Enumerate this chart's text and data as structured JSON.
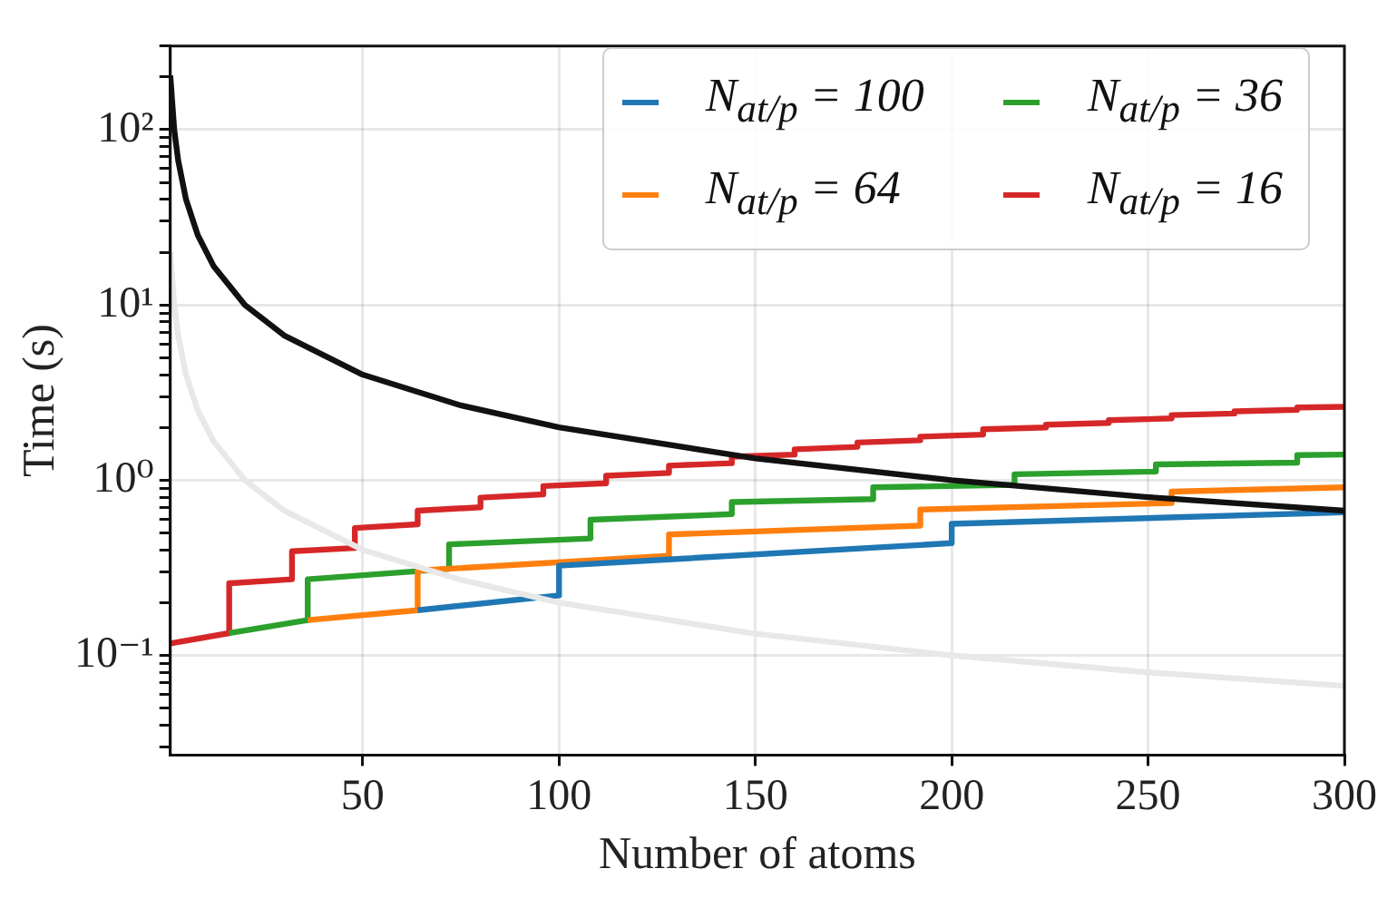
{
  "chart_data": {
    "type": "line",
    "xlabel": "Number of atoms",
    "ylabel": "Time (s)",
    "log": "y",
    "grid": true,
    "legend": "top right",
    "xlim": [
      1,
      300
    ],
    "xticks": [
      50,
      100,
      150,
      200,
      250,
      300
    ],
    "ylim": [
      0.027,
      300
    ],
    "yticks": [
      {
        "value": 0.03,
        "label": null
      },
      {
        "value": 0.04,
        "label": null
      },
      {
        "value": 0.05,
        "label": null
      },
      {
        "value": 0.06,
        "label": null
      },
      {
        "value": 0.07,
        "label": null
      },
      {
        "value": 0.08,
        "label": null
      },
      {
        "value": 0.09,
        "label": null
      },
      {
        "value": 0.1,
        "label": "10⁻¹"
      },
      {
        "value": 0.2,
        "label": null
      },
      {
        "value": 0.3,
        "label": null
      },
      {
        "value": 0.4,
        "label": null
      },
      {
        "value": 0.5,
        "label": null
      },
      {
        "value": 0.6,
        "label": null
      },
      {
        "value": 0.7,
        "label": null
      },
      {
        "value": 0.8,
        "label": null
      },
      {
        "value": 0.9,
        "label": null
      },
      {
        "value": 1,
        "label": "10⁰"
      },
      {
        "value": 2,
        "label": null
      },
      {
        "value": 3,
        "label": null
      },
      {
        "value": 4,
        "label": null
      },
      {
        "value": 5,
        "label": null
      },
      {
        "value": 6,
        "label": null
      },
      {
        "value": 7,
        "label": null
      },
      {
        "value": 8,
        "label": null
      },
      {
        "value": 9,
        "label": null
      },
      {
        "value": 10,
        "label": "10¹"
      },
      {
        "value": 20,
        "label": null
      },
      {
        "value": 30,
        "label": null
      },
      {
        "value": 40,
        "label": null
      },
      {
        "value": 50,
        "label": null
      },
      {
        "value": 60,
        "label": null
      },
      {
        "value": 70,
        "label": null
      },
      {
        "value": 80,
        "label": null
      },
      {
        "value": 90,
        "label": null
      },
      {
        "value": 100,
        "label": "10²"
      },
      {
        "value": 200,
        "label": null
      },
      {
        "value": 300,
        "label": null
      }
    ],
    "series": [
      {
        "color": "#e8e8e8",
        "x": [
          1,
          2,
          3,
          5,
          8,
          12,
          20,
          30,
          50,
          75,
          100,
          150,
          200,
          250,
          300
        ],
        "values": [
          20,
          10,
          6.7,
          4,
          2.5,
          1.67,
          1,
          0.67,
          0.4,
          0.27,
          0.2,
          0.133,
          0.1,
          0.08,
          0.067
        ]
      },
      {
        "color": "#111111",
        "x": [
          1,
          2,
          3,
          5,
          8,
          12,
          20,
          30,
          50,
          75,
          100,
          150,
          200,
          250,
          300
        ],
        "values": [
          204,
          100,
          67,
          40,
          25,
          16.7,
          10,
          6.7,
          4,
          2.67,
          2,
          1.33,
          1,
          0.8,
          0.67
        ]
      },
      {
        "name": "N$_{at/p}$ = 100",
        "color": "#1f77b4",
        "x": [
          64,
          100,
          100,
          200,
          200,
          300
        ],
        "values": [
          0.181,
          0.22,
          0.325,
          0.437,
          0.563,
          0.655
        ]
      },
      {
        "name": "N$_{at/p}$ = 64",
        "color": "#ff7f0e",
        "x": [
          36,
          64,
          64,
          128,
          128,
          192,
          192,
          256,
          256,
          300
        ],
        "values": [
          0.159,
          0.181,
          0.305,
          0.37,
          0.49,
          0.55,
          0.68,
          0.74,
          0.86,
          0.91
        ]
      },
      {
        "name": "N$_{at/p}$ = 36",
        "color": "#2ca02c",
        "x": [
          16,
          36,
          36,
          72,
          72,
          108,
          108,
          144,
          144,
          180,
          180,
          216,
          216,
          252,
          252,
          288,
          288,
          300
        ],
        "values": [
          0.134,
          0.159,
          0.272,
          0.312,
          0.43,
          0.465,
          0.594,
          0.64,
          0.75,
          0.78,
          0.91,
          0.94,
          1.08,
          1.12,
          1.23,
          1.26,
          1.39,
          1.4
        ]
      },
      {
        "name": "N$_{at/p}$ = 16",
        "color": "#d62728",
        "x": [
          1,
          16,
          16,
          32,
          32,
          48,
          48,
          64,
          64,
          80,
          80,
          96,
          96,
          112,
          112,
          128,
          128,
          144,
          144,
          160,
          160,
          176,
          176,
          192,
          192,
          208,
          208,
          224,
          224,
          240,
          240,
          256,
          256,
          272,
          272,
          288,
          288,
          300
        ],
        "values": [
          0.117,
          0.134,
          0.258,
          0.272,
          0.393,
          0.41,
          0.533,
          0.56,
          0.67,
          0.7,
          0.795,
          0.83,
          0.925,
          0.96,
          1.06,
          1.1,
          1.21,
          1.25,
          1.36,
          1.4,
          1.5,
          1.55,
          1.64,
          1.69,
          1.77,
          1.82,
          1.95,
          2.0,
          2.07,
          2.12,
          2.2,
          2.25,
          2.35,
          2.4,
          2.47,
          2.52,
          2.6,
          2.62
        ]
      }
    ]
  }
}
